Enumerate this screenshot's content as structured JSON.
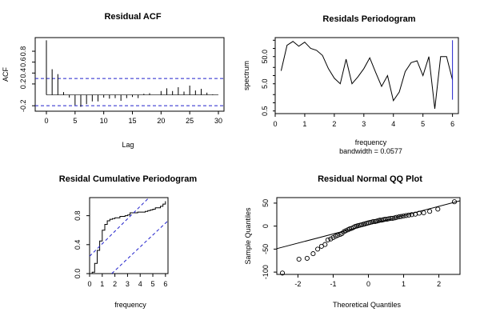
{
  "chart_data": [
    {
      "type": "bar",
      "title": "Residual ACF",
      "xlabel": "Lag",
      "ylabel": "ACF",
      "xlim": [
        0,
        30
      ],
      "ylim": [
        -0.3,
        1.05
      ],
      "xticks": [
        "0",
        "5",
        "10",
        "15",
        "20",
        "25",
        "30"
      ],
      "yticks": [
        "-0.2",
        "0.2",
        "0.4",
        "0.6",
        "0.8"
      ],
      "confidence_bounds": [
        0.3,
        -0.2
      ],
      "lags": [
        0,
        1,
        2,
        3,
        4,
        5,
        6,
        7,
        8,
        9,
        10,
        11,
        12,
        13,
        14,
        15,
        16,
        17,
        18,
        19,
        20,
        21,
        22,
        23,
        24,
        25,
        26,
        27,
        28,
        29,
        30
      ],
      "values": [
        1.0,
        0.47,
        0.38,
        0.05,
        -0.05,
        -0.19,
        -0.22,
        -0.17,
        -0.12,
        -0.12,
        -0.05,
        -0.07,
        -0.06,
        -0.11,
        -0.06,
        -0.04,
        -0.06,
        0.02,
        0.03,
        0.0,
        0.07,
        0.12,
        0.07,
        0.14,
        0.06,
        0.17,
        0.08,
        0.11,
        0.04,
        0.01,
        0.0
      ],
      "grid": false
    },
    {
      "type": "line",
      "title": "Residals Periodogram",
      "xlabel": "frequency",
      "xlabel_sub": "bandwidth = 0.0577",
      "ylabel": "spectrum",
      "y_scale": "log",
      "xlim": [
        0,
        6.2
      ],
      "ylim": [
        0.4,
        250
      ],
      "xticks": [
        "0",
        "1",
        "2",
        "3",
        "4",
        "5",
        "6"
      ],
      "yticks": [
        "0.5",
        "5.0",
        "50.0"
      ],
      "x": [
        0.2,
        0.4,
        0.6,
        0.8,
        1.0,
        1.2,
        1.4,
        1.6,
        1.8,
        2.0,
        2.2,
        2.4,
        2.6,
        2.8,
        3.0,
        3.2,
        3.4,
        3.6,
        3.8,
        4.0,
        4.2,
        4.4,
        4.6,
        4.8,
        5.0,
        5.2,
        5.4,
        5.6,
        5.8,
        6.0
      ],
      "y": [
        15,
        130,
        180,
        120,
        170,
        100,
        85,
        55,
        18,
        8,
        5,
        40,
        5,
        9,
        18,
        45,
        13,
        4,
        10,
        1.2,
        2.5,
        14,
        30,
        35,
        10,
        50,
        0.6,
        50,
        50,
        7
      ],
      "ci_bar": {
        "x": 6.0,
        "y_low": 1.3,
        "y_high": 200
      },
      "grid": false
    },
    {
      "type": "line",
      "title": "Residal Cumulative Periodogram",
      "xlabel": "frequency",
      "ylabel": "",
      "xlim": [
        0,
        6.2
      ],
      "ylim": [
        0,
        1.05
      ],
      "xticks": [
        "0",
        "1",
        "2",
        "3",
        "4",
        "5",
        "6"
      ],
      "yticks": [
        "0.0",
        "0.4",
        "0.8"
      ],
      "x": [
        0.2,
        0.4,
        0.6,
        0.8,
        1.0,
        1.2,
        1.4,
        1.6,
        1.8,
        2.0,
        2.2,
        2.4,
        2.6,
        2.8,
        3.0,
        3.2,
        3.4,
        3.6,
        3.8,
        4.0,
        4.2,
        4.4,
        4.6,
        4.8,
        5.0,
        5.2,
        5.4,
        5.6,
        5.8,
        6.0
      ],
      "y": [
        0.02,
        0.14,
        0.32,
        0.45,
        0.6,
        0.68,
        0.73,
        0.75,
        0.76,
        0.77,
        0.77,
        0.79,
        0.79,
        0.8,
        0.81,
        0.84,
        0.84,
        0.84,
        0.85,
        0.85,
        0.85,
        0.86,
        0.87,
        0.88,
        0.89,
        0.91,
        0.91,
        0.93,
        0.96,
        1.0
      ],
      "bounds": {
        "upper": [
          [
            0,
            0.24
          ],
          [
            4.7,
            1.05
          ]
        ],
        "lower": [
          [
            1.75,
            0
          ],
          [
            6.2,
            0.73
          ]
        ]
      },
      "grid": false
    },
    {
      "type": "scatter",
      "title": "Residual Normal QQ Plot",
      "xlabel": "Theoretical Quantiles",
      "ylabel": "Sample Quantiles",
      "xlim": [
        -2.6,
        2.6
      ],
      "ylim": [
        -105,
        62
      ],
      "xticks": [
        "-2",
        "-1",
        "0",
        "1",
        "2"
      ],
      "yticks": [
        "-100",
        "-50",
        "0",
        "50"
      ],
      "points": [
        [
          -2.44,
          -102
        ],
        [
          -1.97,
          -72
        ],
        [
          -1.74,
          -70
        ],
        [
          -1.57,
          -60
        ],
        [
          -1.44,
          -50
        ],
        [
          -1.33,
          -44
        ],
        [
          -1.23,
          -40
        ],
        [
          -1.15,
          -30
        ],
        [
          -1.07,
          -28
        ],
        [
          -1.0,
          -25
        ],
        [
          -0.93,
          -22
        ],
        [
          -0.87,
          -20
        ],
        [
          -0.8,
          -18
        ],
        [
          -0.75,
          -16
        ],
        [
          -0.69,
          -12
        ],
        [
          -0.64,
          -10
        ],
        [
          -0.58,
          -8
        ],
        [
          -0.53,
          -6
        ],
        [
          -0.48,
          -5
        ],
        [
          -0.43,
          -3
        ],
        [
          -0.38,
          -1
        ],
        [
          -0.33,
          0
        ],
        [
          -0.29,
          1
        ],
        [
          -0.24,
          2
        ],
        [
          -0.19,
          3
        ],
        [
          -0.14,
          4
        ],
        [
          -0.1,
          5
        ],
        [
          -0.05,
          6
        ],
        [
          0.0,
          7
        ],
        [
          0.05,
          8
        ],
        [
          0.1,
          9
        ],
        [
          0.14,
          10
        ],
        [
          0.19,
          10
        ],
        [
          0.24,
          11
        ],
        [
          0.29,
          12
        ],
        [
          0.33,
          13
        ],
        [
          0.38,
          13
        ],
        [
          0.43,
          14
        ],
        [
          0.48,
          15
        ],
        [
          0.53,
          15
        ],
        [
          0.58,
          16
        ],
        [
          0.64,
          17
        ],
        [
          0.69,
          17
        ],
        [
          0.75,
          18
        ],
        [
          0.8,
          19
        ],
        [
          0.87,
          20
        ],
        [
          0.93,
          21
        ],
        [
          1.0,
          22
        ],
        [
          1.07,
          23
        ],
        [
          1.15,
          24
        ],
        [
          1.23,
          25
        ],
        [
          1.33,
          26
        ],
        [
          1.44,
          28
        ],
        [
          1.57,
          29
        ],
        [
          1.74,
          32
        ],
        [
          1.97,
          37
        ],
        [
          2.44,
          53
        ]
      ],
      "ref_line": {
        "intercept": 3,
        "slope": 20
      },
      "grid": false
    }
  ]
}
